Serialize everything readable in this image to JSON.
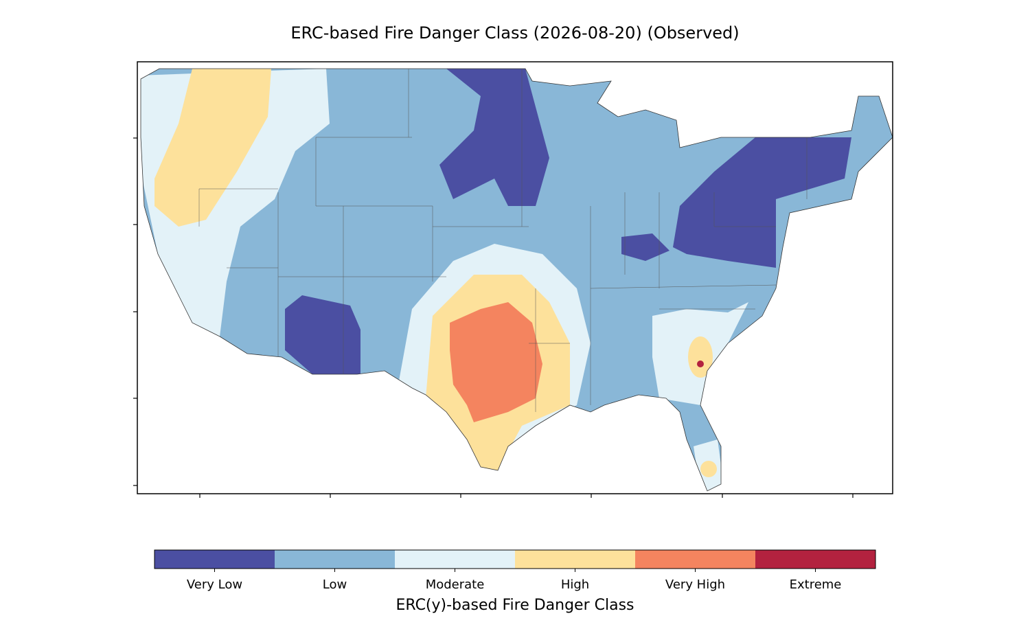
{
  "title": "ERC-based Fire Danger Class (2026-08-20) (Observed)",
  "colorbar": {
    "label": "ERC(y)-based Fire Danger Class",
    "classes": [
      {
        "name": "Very Low",
        "color": "#4b4fa2"
      },
      {
        "name": "Low",
        "color": "#89b7d7"
      },
      {
        "name": "Moderate",
        "color": "#e3f2f8"
      },
      {
        "name": "High",
        "color": "#fde19b"
      },
      {
        "name": "Very High",
        "color": "#f4845f"
      },
      {
        "name": "Extreme",
        "color": "#b3223f"
      }
    ]
  }
}
